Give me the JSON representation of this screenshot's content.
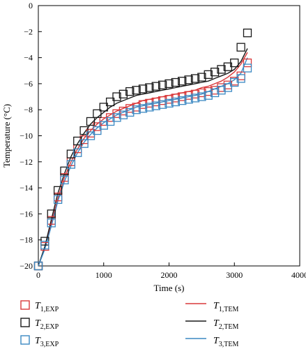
{
  "chart_data": {
    "type": "scatter",
    "xlabel": "Time (s)",
    "ylabel": "Temperature (°C)",
    "xlim": [
      0,
      4000
    ],
    "ylim": [
      -20,
      0
    ],
    "xticks": [
      0,
      1000,
      2000,
      3000,
      4000
    ],
    "yticks": [
      0,
      -2,
      -4,
      -6,
      -8,
      -10,
      -12,
      -14,
      -16,
      -18,
      -20
    ],
    "grid": false,
    "legend_position": "bottom",
    "x": [
      0,
      100,
      200,
      300,
      400,
      500,
      600,
      700,
      800,
      900,
      1000,
      1100,
      1200,
      1300,
      1400,
      1500,
      1600,
      1700,
      1800,
      1900,
      2000,
      2100,
      2200,
      2300,
      2400,
      2500,
      2600,
      2700,
      2800,
      2900,
      3000,
      3100,
      3200
    ],
    "series": [
      {
        "name": "T1,EXP",
        "kind": "markers",
        "color": "#d9383a",
        "values": [
          -20.0,
          -18.5,
          -16.5,
          -14.7,
          -13.2,
          -12.0,
          -11.0,
          -10.3,
          -9.8,
          -9.3,
          -8.9,
          -8.6,
          -8.3,
          -8.1,
          -7.9,
          -7.8,
          -7.6,
          -7.5,
          -7.4,
          -7.3,
          -7.2,
          -7.1,
          -7.0,
          -6.9,
          -6.8,
          -6.7,
          -6.6,
          -6.5,
          -6.3,
          -6.1,
          -5.8,
          -5.4,
          -4.4
        ]
      },
      {
        "name": "T2,EXP",
        "kind": "markers",
        "color": "#1a1a1a",
        "values": [
          -20.0,
          -18.1,
          -16.0,
          -14.2,
          -12.7,
          -11.4,
          -10.4,
          -9.6,
          -8.9,
          -8.3,
          -7.8,
          -7.4,
          -7.0,
          -6.8,
          -6.6,
          -6.5,
          -6.4,
          -6.3,
          -6.2,
          -6.1,
          -6.0,
          -5.9,
          -5.8,
          -5.7,
          -5.6,
          -5.5,
          -5.3,
          -5.1,
          -4.9,
          -4.7,
          -4.4,
          -3.2,
          -2.1
        ]
      },
      {
        "name": "T3,EXP",
        "kind": "markers",
        "color": "#3a88c2",
        "values": [
          -20.0,
          -18.4,
          -16.7,
          -14.9,
          -13.4,
          -12.2,
          -11.3,
          -10.6,
          -10.0,
          -9.6,
          -9.2,
          -8.9,
          -8.6,
          -8.4,
          -8.2,
          -8.0,
          -7.9,
          -7.8,
          -7.7,
          -7.6,
          -7.5,
          -7.4,
          -7.3,
          -7.2,
          -7.1,
          -7.0,
          -6.9,
          -6.7,
          -6.5,
          -6.3,
          -5.9,
          -5.6,
          -4.8
        ]
      },
      {
        "name": "T1,TEM",
        "kind": "line",
        "color": "#d9383a",
        "values": [
          -20.0,
          -18.6,
          -16.7,
          -14.8,
          -13.2,
          -12.0,
          -11.0,
          -10.2,
          -9.6,
          -9.1,
          -8.7,
          -8.4,
          -8.1,
          -7.9,
          -7.7,
          -7.5,
          -7.3,
          -7.2,
          -7.1,
          -7.0,
          -6.9,
          -6.8,
          -6.7,
          -6.6,
          -6.5,
          -6.3,
          -6.2,
          -6.0,
          -5.8,
          -5.5,
          -5.1,
          -4.5,
          -3.6
        ]
      },
      {
        "name": "T2,TEM",
        "kind": "line",
        "color": "#1a1a1a",
        "values": [
          -20.0,
          -18.5,
          -16.4,
          -14.4,
          -12.9,
          -11.6,
          -10.6,
          -9.8,
          -9.1,
          -8.6,
          -8.2,
          -7.8,
          -7.5,
          -7.3,
          -7.1,
          -6.9,
          -6.8,
          -6.7,
          -6.6,
          -6.5,
          -6.4,
          -6.3,
          -6.2,
          -6.1,
          -6.0,
          -5.9,
          -5.8,
          -5.6,
          -5.4,
          -5.2,
          -4.9,
          -4.3,
          -3.3
        ]
      },
      {
        "name": "T3,TEM",
        "kind": "line",
        "color": "#3a88c2",
        "values": [
          -20.0,
          -18.7,
          -16.9,
          -15.0,
          -13.5,
          -12.3,
          -11.3,
          -10.5,
          -9.9,
          -9.4,
          -9.0,
          -8.7,
          -8.4,
          -8.2,
          -8.0,
          -7.8,
          -7.7,
          -7.6,
          -7.5,
          -7.4,
          -7.3,
          -7.2,
          -7.1,
          -7.0,
          -6.9,
          -6.8,
          -6.6,
          -6.4,
          -6.2,
          -6.0,
          -5.7,
          -5.2,
          -4.0
        ]
      }
    ],
    "legend": [
      {
        "symbol": "T",
        "sub": "1,EXP",
        "kind": "marker",
        "color": "#d9383a"
      },
      {
        "symbol": "T",
        "sub": "2,EXP",
        "kind": "marker",
        "color": "#1a1a1a"
      },
      {
        "symbol": "T",
        "sub": "3,EXP",
        "kind": "marker",
        "color": "#3a88c2"
      },
      {
        "symbol": "T",
        "sub": "1,TEM",
        "kind": "line",
        "color": "#d9383a"
      },
      {
        "symbol": "T",
        "sub": "2,TEM",
        "kind": "line",
        "color": "#1a1a1a"
      },
      {
        "symbol": "T",
        "sub": "3,TEM",
        "kind": "line",
        "color": "#3a88c2"
      }
    ]
  }
}
